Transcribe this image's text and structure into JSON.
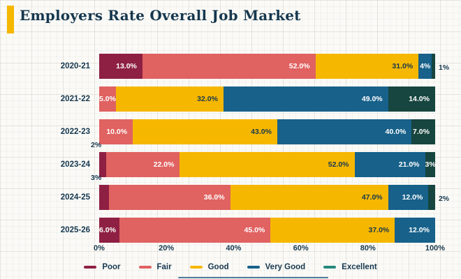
{
  "title_block": {
    "title": "Employers Rate Overall Job Market"
  },
  "colors": {
    "navy_text": "#16384f",
    "accent_bar": "#f6b700",
    "paper": "#fbfaf7",
    "label_light": "#ffffff",
    "label_dark": "#16384f",
    "scrollbar": "#4d7d9b"
  },
  "chart_data": {
    "type": "bar",
    "orientation": "horizontal",
    "stacked": true,
    "title": "Employers Rate Overall Job Market",
    "categories": [
      "2020-21",
      "2021-22",
      "2022-23",
      "2023-24",
      "2024-25",
      "2025-26"
    ],
    "series": [
      {
        "name": "Poor",
        "color": "#8e2043",
        "values": [
          13,
          0,
          0,
          2,
          3,
          6
        ],
        "labels": [
          "13.0%",
          "",
          "",
          "2%",
          "3%",
          "6.0%"
        ],
        "label_pos": [
          "in",
          "",
          "",
          "above",
          "above",
          "in"
        ],
        "label_style": [
          "light",
          "",
          "",
          "dark",
          "dark",
          "light"
        ]
      },
      {
        "name": "Fair",
        "color": "#e06261",
        "values": [
          52,
          5,
          10,
          22,
          36,
          45
        ],
        "labels": [
          "52.0%",
          "5.0%",
          "10.0%",
          "22.0%",
          "36.0%",
          "45.0%"
        ],
        "label_pos": [
          "in",
          "in-center",
          "in",
          "in",
          "in",
          "in"
        ],
        "label_style": [
          "light",
          "light",
          "light",
          "light",
          "light",
          "light"
        ]
      },
      {
        "name": "Good",
        "color": "#f6b700",
        "values": [
          31,
          32,
          43,
          52,
          47,
          37
        ],
        "labels": [
          "31.0%",
          "32.0%",
          "43.0%",
          "52.0%",
          "47.0%",
          "37.0%"
        ],
        "label_pos": [
          "in",
          "in",
          "in",
          "in",
          "in",
          "in"
        ],
        "label_style": [
          "dark",
          "dark",
          "dark",
          "dark",
          "dark",
          "dark"
        ]
      },
      {
        "name": "Very Good",
        "color": "#17618a",
        "values": [
          4,
          49,
          40,
          21,
          12,
          12
        ],
        "labels": [
          "4%",
          "49.0%",
          "40.0%",
          "21.0%",
          "12.0%",
          "12.0%"
        ],
        "label_pos": [
          "in-center",
          "in",
          "in",
          "in",
          "in",
          "in"
        ],
        "label_style": [
          "light",
          "light",
          "light",
          "light",
          "light",
          "light"
        ]
      },
      {
        "name": "Excellent",
        "color": "#17453f",
        "legend_color": "#26897e",
        "values": [
          1,
          14,
          7,
          3,
          2,
          0
        ],
        "labels": [
          "1%",
          "14.0%",
          "7.0%",
          "3%",
          "2%",
          ""
        ],
        "label_pos": [
          "right",
          "in",
          "in",
          "in-center",
          "right",
          ""
        ],
        "label_style": [
          "dark",
          "light",
          "light",
          "light",
          "dark",
          ""
        ]
      }
    ],
    "x_ticks": [
      "0%",
      "20%",
      "40%",
      "60%",
      "80%",
      "100%"
    ],
    "xlim": [
      0,
      100
    ],
    "legend_position": "bottom",
    "grid": "graph-paper-background"
  }
}
